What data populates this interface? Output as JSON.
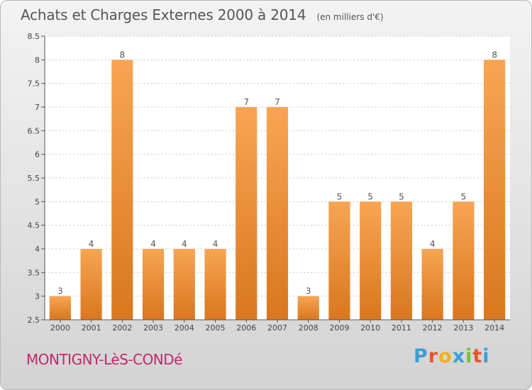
{
  "header": {
    "title": "Achats et Charges Externes 2000 à 2014",
    "unit": "(en milliers d'€)"
  },
  "footer": {
    "commune": "MONTIGNY-LèS-CONDé",
    "brand_letters": [
      "P",
      "r",
      "o",
      "x",
      "i",
      "t",
      "i"
    ],
    "brand_colors": [
      "#3aa0d8",
      "#e8542a",
      "#f2b01e",
      "#3aa0d8",
      "#7bbf3a",
      "#e8542a",
      "#3aa0d8"
    ]
  },
  "chart_data": {
    "type": "bar",
    "categories": [
      "2000",
      "2001",
      "2002",
      "2003",
      "2004",
      "2005",
      "2006",
      "2007",
      "2008",
      "2009",
      "2010",
      "2011",
      "2012",
      "2013",
      "2014"
    ],
    "values": [
      3,
      4,
      8,
      4,
      4,
      4,
      7,
      7,
      3,
      5,
      5,
      5,
      4,
      5,
      8
    ],
    "data_labels": [
      "3",
      "4",
      "8",
      "4",
      "4",
      "4",
      "7",
      "7",
      "3",
      "5",
      "5",
      "5",
      "4",
      "5",
      "8"
    ],
    "title": "Achats et Charges Externes 2000 à 2014",
    "xlabel": "",
    "ylabel": "",
    "ylim": [
      2.5,
      8.5
    ],
    "yticks": [
      2.5,
      3,
      3.5,
      4,
      4.5,
      5,
      5.5,
      6,
      6.5,
      7,
      7.5,
      8,
      8.5
    ],
    "ytick_labels": [
      "2.5",
      "3",
      "3.5",
      "4",
      "4.5",
      "5",
      "5.5",
      "6",
      "6.5",
      "7",
      "7.5",
      "8",
      "8.5"
    ],
    "grid": "horizontal-dashed",
    "bar_color_top": "#f7a553",
    "bar_color_bottom": "#d9771e"
  }
}
